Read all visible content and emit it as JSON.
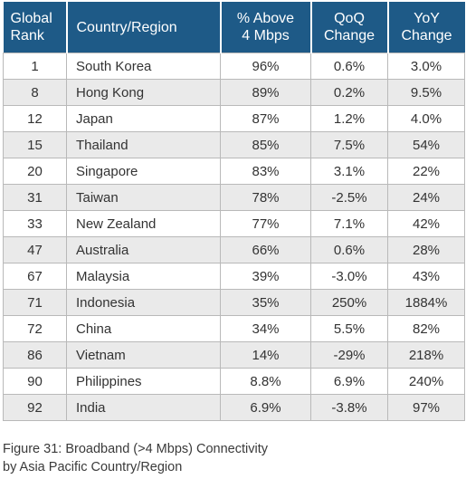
{
  "table": {
    "headers": {
      "rank": [
        "Global",
        "Rank"
      ],
      "country": [
        "Country/Region"
      ],
      "above": [
        "% Above",
        "4 Mbps"
      ],
      "qoq": [
        "QoQ",
        "Change"
      ],
      "yoy": [
        "YoY",
        "Change"
      ]
    },
    "rows": [
      {
        "rank": "1",
        "country": "South Korea",
        "above": "96%",
        "qoq": "0.6%",
        "yoy": "3.0%"
      },
      {
        "rank": "8",
        "country": "Hong Kong",
        "above": "89%",
        "qoq": "0.2%",
        "yoy": "9.5%"
      },
      {
        "rank": "12",
        "country": "Japan",
        "above": "87%",
        "qoq": "1.2%",
        "yoy": "4.0%"
      },
      {
        "rank": "15",
        "country": "Thailand",
        "above": "85%",
        "qoq": "7.5%",
        "yoy": "54%"
      },
      {
        "rank": "20",
        "country": "Singapore",
        "above": "83%",
        "qoq": "3.1%",
        "yoy": "22%"
      },
      {
        "rank": "31",
        "country": "Taiwan",
        "above": "78%",
        "qoq": "-2.5%",
        "yoy": "24%"
      },
      {
        "rank": "33",
        "country": "New Zealand",
        "above": "77%",
        "qoq": "7.1%",
        "yoy": "42%"
      },
      {
        "rank": "47",
        "country": "Australia",
        "above": "66%",
        "qoq": "0.6%",
        "yoy": "28%"
      },
      {
        "rank": "67",
        "country": "Malaysia",
        "above": "39%",
        "qoq": "-3.0%",
        "yoy": "43%"
      },
      {
        "rank": "71",
        "country": "Indonesia",
        "above": "35%",
        "qoq": "250%",
        "yoy": "1884%"
      },
      {
        "rank": "72",
        "country": "China",
        "above": "34%",
        "qoq": "5.5%",
        "yoy": "82%"
      },
      {
        "rank": "86",
        "country": "Vietnam",
        "above": "14%",
        "qoq": "-29%",
        "yoy": "218%"
      },
      {
        "rank": "90",
        "country": "Philippines",
        "above": "8.8%",
        "qoq": "6.9%",
        "yoy": "240%"
      },
      {
        "rank": "92",
        "country": "India",
        "above": "6.9%",
        "qoq": "-3.8%",
        "yoy": "97%"
      }
    ]
  },
  "caption": {
    "line1": "Figure 31: Broadband (>4 Mbps) Connectivity",
    "line2": "by Asia Pacific Country/Region"
  },
  "colors": {
    "header_bg": "#1e5a87",
    "header_text": "#ffffff",
    "stripe": "#eaeaea",
    "border": "#b9b9b9"
  }
}
